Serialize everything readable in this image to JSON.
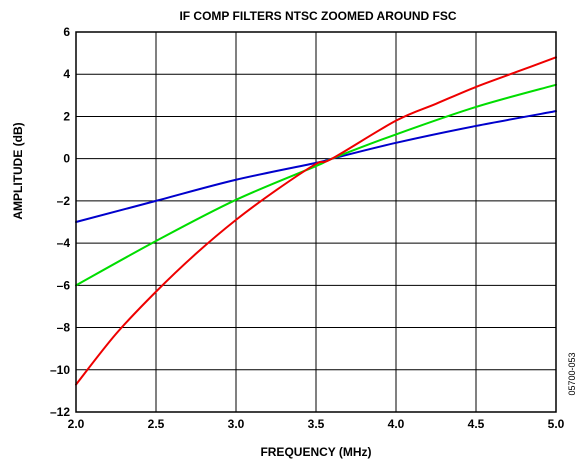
{
  "chart_data": {
    "type": "line",
    "title": "IF COMP FILTERS NTSC ZOOMED AROUND FSC",
    "xlabel": "FREQUENCY (MHz)",
    "ylabel": "AMPLITUDE (dB)",
    "xlim": [
      2.0,
      5.0
    ],
    "ylim": [
      -12,
      6
    ],
    "x_ticks": [
      "2.0",
      "2.5",
      "3.0",
      "3.5",
      "4.0",
      "4.5",
      "5.0"
    ],
    "y_ticks": [
      "6",
      "4",
      "2",
      "0",
      "–2",
      "–4",
      "–6",
      "–8",
      "–10",
      "–12"
    ],
    "grid": true,
    "legend": "none",
    "series": [
      {
        "color": "#0000cc",
        "x": [
          2.0,
          2.5,
          3.0,
          3.5,
          3.6,
          4.0,
          4.5,
          5.0
        ],
        "y": [
          -3.0,
          -2.0,
          -1.0,
          -0.2,
          0.0,
          0.75,
          1.55,
          2.25
        ]
      },
      {
        "color": "#00dd00",
        "x": [
          2.0,
          2.5,
          3.0,
          3.5,
          3.6,
          4.0,
          4.5,
          5.0
        ],
        "y": [
          -6.0,
          -3.9,
          -1.95,
          -0.35,
          0.0,
          1.15,
          2.45,
          3.5
        ]
      },
      {
        "color": "#ee0000",
        "x": [
          2.0,
          2.25,
          2.5,
          2.75,
          3.0,
          3.25,
          3.5,
          3.6,
          4.0,
          4.25,
          4.5,
          4.75,
          5.0
        ],
        "y": [
          -10.7,
          -8.3,
          -6.3,
          -4.5,
          -2.9,
          -1.5,
          -0.25,
          0.0,
          1.8,
          2.6,
          3.4,
          4.1,
          4.8
        ]
      }
    ],
    "annotation": "05700-053"
  }
}
